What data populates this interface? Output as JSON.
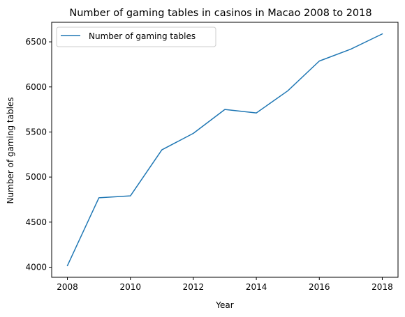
{
  "chart_data": {
    "type": "line",
    "title": "Number of gaming tables in casinos in Macao 2008 to 2018",
    "xlabel": "Year",
    "ylabel": "Number of gaming tables",
    "x": [
      2008,
      2009,
      2010,
      2011,
      2012,
      2013,
      2014,
      2015,
      2016,
      2017,
      2018
    ],
    "series": [
      {
        "name": "Number of gaming tables",
        "color": "#1f77b4",
        "values": [
          4017,
          4770,
          4791,
          5302,
          5485,
          5750,
          5711,
          5957,
          6287,
          6419,
          6588
        ]
      }
    ],
    "xticks": [
      "2008",
      "2010",
      "2012",
      "2014",
      "2016",
      "2018"
    ],
    "yticks": [
      "4000",
      "4500",
      "5000",
      "5500",
      "6000",
      "6500"
    ],
    "xlim": [
      2007.5,
      2018.5
    ],
    "ylim": [
      3888,
      6717
    ],
    "grid": false,
    "legend_position": "top-left"
  }
}
